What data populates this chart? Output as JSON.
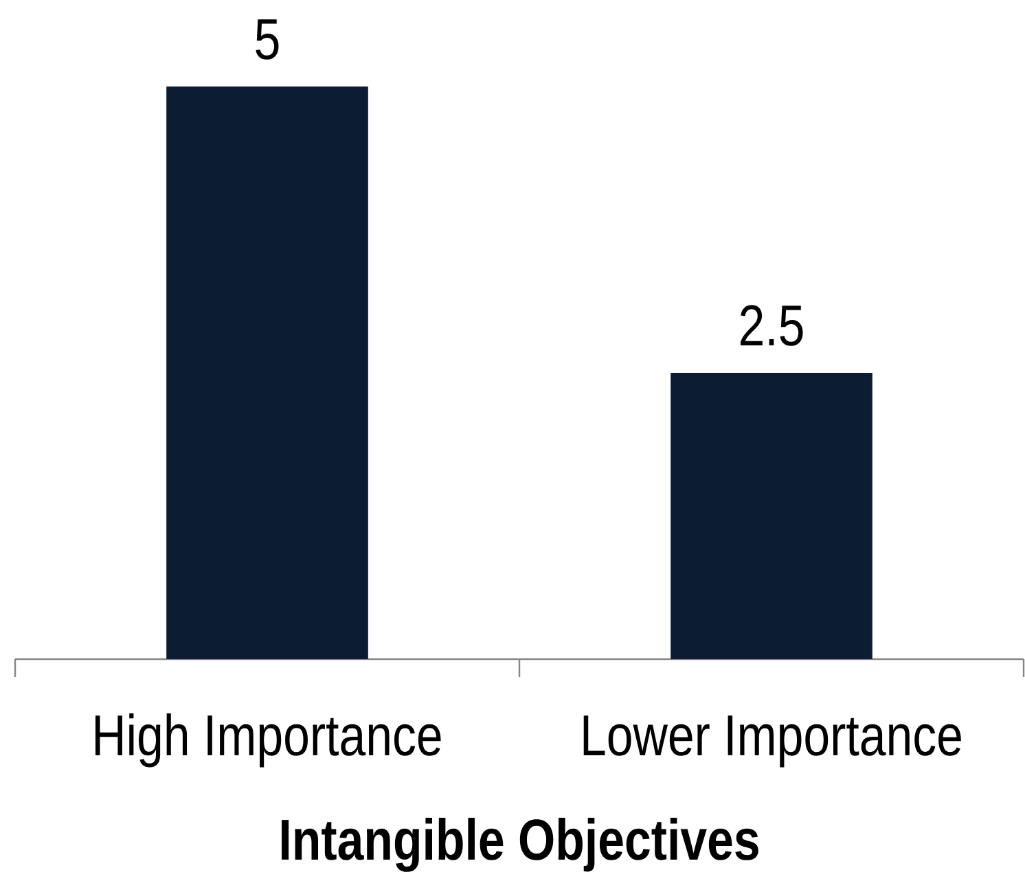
{
  "chart_data": {
    "type": "bar",
    "xlabel": "Intangible Objectives",
    "categories": [
      "High Importance",
      "Lower Importance"
    ],
    "values": [
      5,
      2.5
    ],
    "color": "#0b1c33",
    "data_labels": true,
    "tick_labels": "x"
  }
}
